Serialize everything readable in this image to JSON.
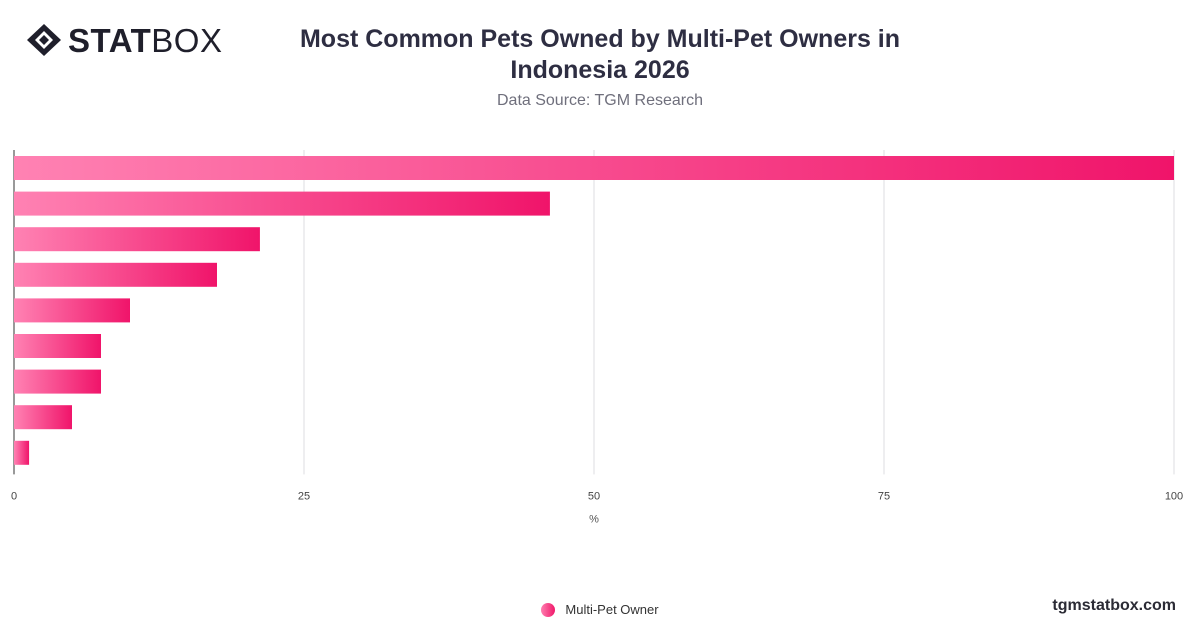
{
  "brand": {
    "bold": "STAT",
    "light": "BOX",
    "icon": "diamond-logo-icon"
  },
  "header": {
    "title": "Most Common Pets Owned by Multi-Pet Owners in Indonesia 2026",
    "subtitle": "Data Source: TGM Research"
  },
  "footer": {
    "site": "tgmstatbox.com"
  },
  "colors": {
    "bar_start": "#ff82b3",
    "bar_end": "#f0146a",
    "grid": "#dcdce0",
    "axis": "#333333"
  },
  "chart_data": {
    "type": "bar",
    "orientation": "horizontal",
    "categories": [
      "",
      "",
      "",
      "",
      "",
      "",
      "",
      "",
      ""
    ],
    "series": [
      {
        "name": "Multi-Pet Owner",
        "values": [
          100,
          46.2,
          21.2,
          17.5,
          10,
          7.5,
          7.5,
          5,
          1.3
        ]
      }
    ],
    "xlabel": "%",
    "ylabel": "",
    "xlim": [
      0,
      100
    ],
    "xticks": [
      "0",
      "25",
      "50",
      "75",
      "100"
    ],
    "grid": true,
    "legend": "bottom-center"
  }
}
